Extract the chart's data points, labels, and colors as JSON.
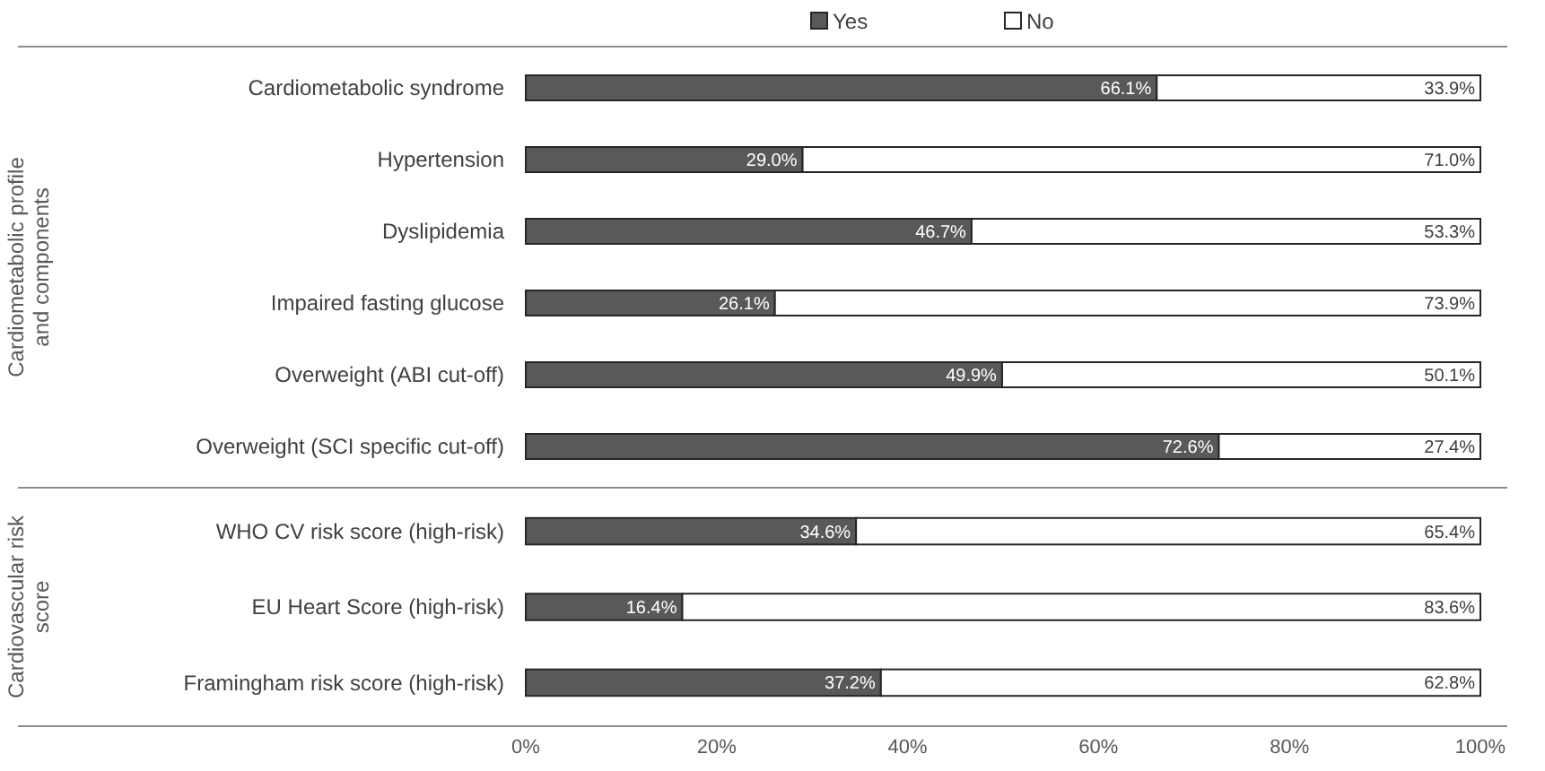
{
  "chart_data": [
    {
      "type": "bar",
      "orientation": "horizontal",
      "stacked": true,
      "ylabel": "Cardiometabolic profile and components",
      "categories": [
        "Cardiometabolic syndrome",
        "Hypertension",
        "Dyslipidemia",
        "Impaired fasting glucose",
        "Overweight (ABI cut-off)",
        "Overweight (SCI specific cut-off)"
      ],
      "xlim": [
        0,
        100
      ],
      "tick_labels": "y",
      "legend": "top",
      "series": [
        {
          "name": "Yes",
          "color": "#595959",
          "values": [
            66.1,
            29.0,
            46.7,
            26.1,
            49.9,
            72.6
          ],
          "value_labels": [
            "66.1%",
            "29.0%",
            "46.7%",
            "26.1%",
            "49.9%",
            "72.6%"
          ]
        },
        {
          "name": "No",
          "color": "#ffffff",
          "values": [
            33.9,
            71.0,
            53.3,
            73.9,
            50.1,
            27.4
          ],
          "value_labels": [
            "33.9%",
            "71.0%",
            "53.3%",
            "73.9%",
            "50.1%",
            "27.4%"
          ]
        }
      ]
    },
    {
      "type": "bar",
      "orientation": "horizontal",
      "stacked": true,
      "ylabel": "Cardiovascular risk score",
      "categories": [
        "WHO CV risk score (high-risk)",
        "EU Heart Score (high-risk)",
        "Framingham risk score (high-risk)"
      ],
      "xlim": [
        0,
        100
      ],
      "xticks": [
        {
          "value": 0,
          "label": "0%"
        },
        {
          "value": 20,
          "label": "20%"
        },
        {
          "value": 40,
          "label": "40%"
        },
        {
          "value": 60,
          "label": "60%"
        },
        {
          "value": 80,
          "label": "80%"
        },
        {
          "value": 100,
          "label": "100%"
        }
      ],
      "series": [
        {
          "color": "#595959",
          "values": [
            34.6,
            16.4,
            37.2
          ],
          "value_labels": [
            "34.6%",
            "16.4%",
            "37.2%"
          ]
        },
        {
          "color": "#ffffff",
          "values": [
            65.4,
            83.6,
            62.8
          ],
          "value_labels": [
            "65.4%",
            "83.6%",
            "62.8%"
          ]
        }
      ]
    }
  ]
}
